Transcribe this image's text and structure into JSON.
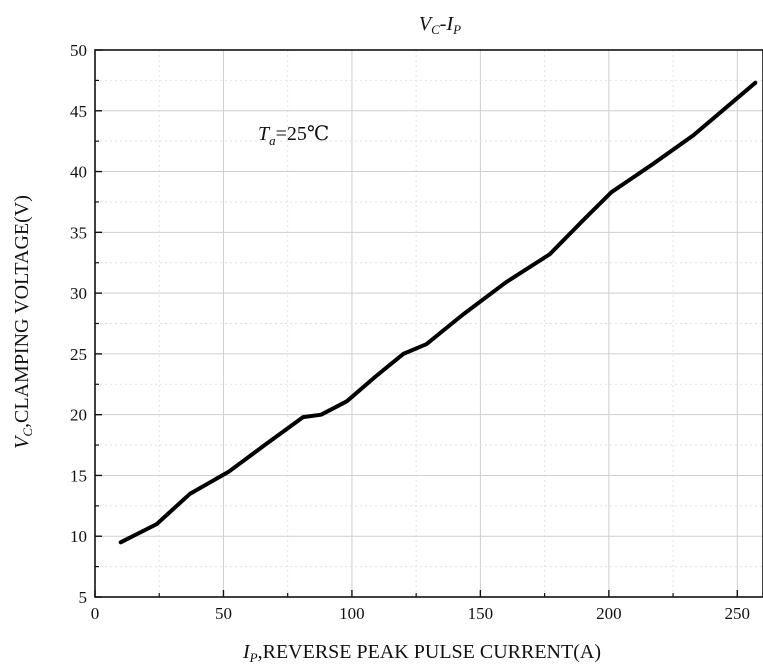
{
  "chart_data": {
    "type": "line",
    "title": {
      "main": "V",
      "main_sub": "C",
      "sep": "-",
      "second": "I",
      "second_sub": "P"
    },
    "xlabel": {
      "symbol": "I",
      "sub": "P",
      "text": ",REVERSE PEAK PULSE CURRENT(A)"
    },
    "ylabel": {
      "symbol": "V",
      "sub": "C",
      "text": ",CLAMPING VOLTAGE(V)"
    },
    "annotation": {
      "symbol": "T",
      "sub": "a",
      "text": "=25℃"
    },
    "xlim": [
      0,
      260
    ],
    "ylim": [
      5,
      50
    ],
    "xticks": [
      0,
      50,
      100,
      150,
      200,
      250
    ],
    "yticks": [
      5,
      10,
      15,
      20,
      25,
      30,
      35,
      40,
      45,
      50
    ],
    "grid": true,
    "series": [
      {
        "x": [
          10,
          24,
          37,
          52,
          66,
          81,
          88,
          98,
          109,
          120,
          129,
          143,
          160,
          177,
          190,
          201,
          217,
          233,
          257
        ],
        "y": [
          9.5,
          11.0,
          13.5,
          15.3,
          17.5,
          19.8,
          20.0,
          21.1,
          23.1,
          25.0,
          25.8,
          28.2,
          30.9,
          33.2,
          36.0,
          38.3,
          40.6,
          43.0,
          47.3
        ]
      }
    ]
  }
}
